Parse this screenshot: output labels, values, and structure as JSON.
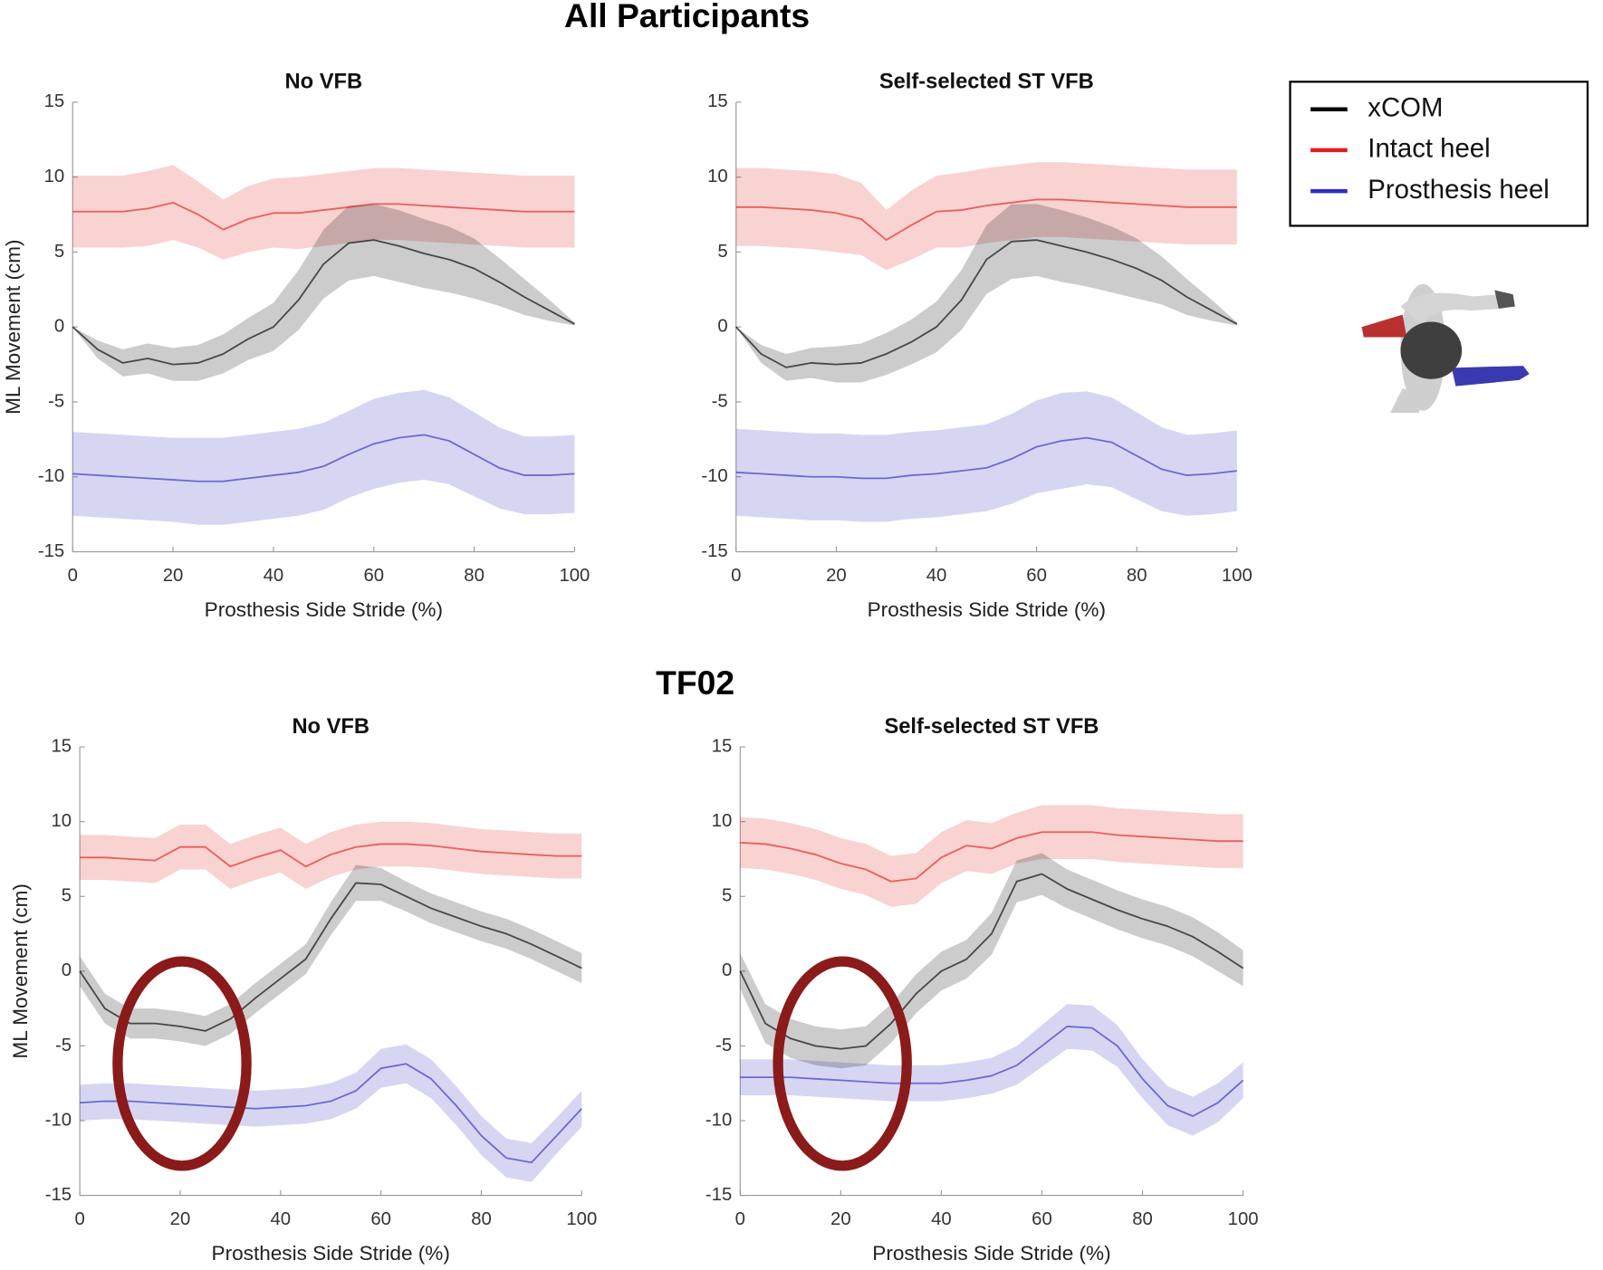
{
  "section_titles": [
    "All Participants",
    "TF02"
  ],
  "chart_data": [
    {
      "type": "line",
      "title": "No VFB",
      "xlabel": "Prosthesis Side Stride (%)",
      "ylabel": "ML Movement (cm)",
      "x": [
        0,
        5,
        10,
        15,
        20,
        25,
        30,
        35,
        40,
        45,
        50,
        55,
        60,
        65,
        70,
        75,
        80,
        85,
        90,
        95,
        100
      ],
      "xlim": [
        0,
        100
      ],
      "ylim": [
        -15,
        15
      ],
      "xticks": [
        0,
        20,
        40,
        60,
        80,
        100
      ],
      "yticks": [
        -15,
        -10,
        -5,
        0,
        5,
        10,
        15
      ],
      "series": [
        {
          "name": "xCOM",
          "color": "#000000",
          "values": [
            0,
            -1.5,
            -2.4,
            -2.1,
            -2.5,
            -2.4,
            -1.8,
            -0.8,
            0,
            1.8,
            4.2,
            5.6,
            5.8,
            5.4,
            4.9,
            4.5,
            3.9,
            3.0,
            2.0,
            1.1,
            0.2
          ],
          "sd": [
            0,
            0.6,
            0.9,
            1,
            1.1,
            1.2,
            1.3,
            1.4,
            1.6,
            2,
            2.3,
            2.5,
            2.4,
            2.4,
            2.3,
            2.2,
            2,
            1.6,
            1.2,
            0.7,
            0.1
          ]
        },
        {
          "name": "Intact heel",
          "color": "#e02020",
          "values": [
            7.7,
            7.7,
            7.7,
            7.9,
            8.3,
            7.5,
            6.5,
            7.2,
            7.6,
            7.6,
            7.8,
            8.0,
            8.2,
            8.2,
            8.1,
            8.0,
            7.9,
            7.8,
            7.7,
            7.7,
            7.7
          ],
          "sd": [
            2.4,
            2.4,
            2.4,
            2.5,
            2.5,
            2.2,
            2.0,
            2.2,
            2.3,
            2.4,
            2.4,
            2.4,
            2.4,
            2.4,
            2.4,
            2.4,
            2.4,
            2.4,
            2.4,
            2.4,
            2.4
          ]
        },
        {
          "name": "Prosthesis heel",
          "color": "#3030c0",
          "values": [
            -9.8,
            -9.9,
            -10,
            -10.1,
            -10.2,
            -10.3,
            -10.3,
            -10.1,
            -9.9,
            -9.7,
            -9.3,
            -8.5,
            -7.8,
            -7.4,
            -7.2,
            -7.6,
            -8.5,
            -9.4,
            -9.9,
            -9.9,
            -9.8
          ],
          "sd": [
            2.8,
            2.8,
            2.8,
            2.8,
            2.8,
            2.9,
            2.9,
            2.9,
            2.9,
            2.9,
            2.9,
            2.9,
            3,
            3,
            3,
            2.9,
            2.8,
            2.7,
            2.6,
            2.6,
            2.6
          ]
        }
      ]
    },
    {
      "type": "line",
      "title": "Self-selected ST VFB",
      "xlabel": "Prosthesis Side Stride (%)",
      "x": [
        0,
        5,
        10,
        15,
        20,
        25,
        30,
        35,
        40,
        45,
        50,
        55,
        60,
        65,
        70,
        75,
        80,
        85,
        90,
        95,
        100
      ],
      "xlim": [
        0,
        100
      ],
      "ylim": [
        -15,
        15
      ],
      "xticks": [
        0,
        20,
        40,
        60,
        80,
        100
      ],
      "yticks": [
        -15,
        -10,
        -5,
        0,
        5,
        10,
        15
      ],
      "series": [
        {
          "color": "#000000",
          "values": [
            0,
            -1.8,
            -2.7,
            -2.4,
            -2.5,
            -2.4,
            -1.8,
            -1,
            0,
            1.8,
            4.5,
            5.7,
            5.8,
            5.4,
            5,
            4.5,
            3.9,
            3.1,
            2,
            1.1,
            0.2
          ],
          "sd": [
            0,
            0.6,
            0.9,
            1,
            1.2,
            1.3,
            1.4,
            1.5,
            1.7,
            2,
            2.3,
            2.5,
            2.4,
            2.4,
            2.3,
            2.2,
            2,
            1.6,
            1.2,
            0.7,
            0.1
          ]
        },
        {
          "color": "#e02020",
          "values": [
            8,
            8,
            7.9,
            7.8,
            7.6,
            7.2,
            5.8,
            6.8,
            7.7,
            7.8,
            8.1,
            8.3,
            8.5,
            8.5,
            8.4,
            8.3,
            8.2,
            8.1,
            8,
            8,
            8
          ],
          "sd": [
            2.6,
            2.6,
            2.6,
            2.6,
            2.6,
            2.4,
            2.0,
            2.3,
            2.4,
            2.5,
            2.5,
            2.5,
            2.5,
            2.5,
            2.5,
            2.5,
            2.5,
            2.5,
            2.5,
            2.5,
            2.5
          ]
        },
        {
          "color": "#3030c0",
          "values": [
            -9.7,
            -9.8,
            -9.9,
            -10,
            -10,
            -10.1,
            -10.1,
            -9.9,
            -9.8,
            -9.6,
            -9.4,
            -8.8,
            -8,
            -7.6,
            -7.4,
            -7.7,
            -8.6,
            -9.5,
            -9.9,
            -9.8,
            -9.6
          ],
          "sd": [
            2.9,
            2.9,
            2.9,
            2.9,
            2.9,
            2.9,
            2.9,
            2.9,
            2.9,
            2.9,
            2.9,
            3,
            3.1,
            3.2,
            3.1,
            3,
            2.9,
            2.8,
            2.7,
            2.7,
            2.7
          ]
        }
      ]
    },
    {
      "type": "line",
      "title": "No VFB",
      "xlabel": "Prosthesis Side Stride (%)",
      "ylabel": "ML Movement (cm)",
      "x": [
        0,
        5,
        10,
        15,
        20,
        25,
        30,
        35,
        40,
        45,
        50,
        55,
        60,
        65,
        70,
        75,
        80,
        85,
        90,
        95,
        100
      ],
      "xlim": [
        0,
        100
      ],
      "ylim": [
        -15,
        15
      ],
      "xticks": [
        0,
        20,
        40,
        60,
        80,
        100
      ],
      "yticks": [
        -15,
        -10,
        -5,
        0,
        5,
        10,
        15
      ],
      "series": [
        {
          "color": "#000000",
          "values": [
            0,
            -2.5,
            -3.5,
            -3.5,
            -3.7,
            -4.0,
            -3.2,
            -1.8,
            -0.5,
            0.8,
            3.5,
            5.9,
            5.8,
            5.0,
            4.2,
            3.6,
            3.0,
            2.5,
            1.8,
            1.0,
            0.2
          ],
          "sd": [
            1,
            1,
            1,
            1,
            1,
            1,
            1,
            1,
            1,
            1,
            1.1,
            1.2,
            1.1,
            1,
            1,
            1,
            1,
            1,
            1,
            1,
            1
          ]
        },
        {
          "color": "#e02020",
          "values": [
            7.6,
            7.6,
            7.5,
            7.4,
            8.3,
            8.3,
            7.0,
            7.6,
            8.1,
            7.0,
            7.8,
            8.3,
            8.5,
            8.5,
            8.4,
            8.2,
            8.0,
            7.9,
            7.8,
            7.7,
            7.7
          ],
          "sd": [
            1.5,
            1.5,
            1.5,
            1.5,
            1.5,
            1.5,
            1.5,
            1.5,
            1.5,
            1.5,
            1.5,
            1.5,
            1.5,
            1.5,
            1.5,
            1.5,
            1.5,
            1.5,
            1.5,
            1.5,
            1.5
          ]
        },
        {
          "color": "#3030c0",
          "values": [
            -8.8,
            -8.7,
            -8.7,
            -8.8,
            -8.9,
            -9.0,
            -9.1,
            -9.2,
            -9.1,
            -9.0,
            -8.7,
            -8.0,
            -6.5,
            -6.2,
            -7.2,
            -9.0,
            -11,
            -12.5,
            -12.8,
            -11,
            -9.2
          ],
          "sd": [
            1.2,
            1.2,
            1.2,
            1.2,
            1.2,
            1.2,
            1.2,
            1.2,
            1.2,
            1.2,
            1.2,
            1.2,
            1.3,
            1.3,
            1.3,
            1.3,
            1.3,
            1.3,
            1.3,
            1.2,
            1.2
          ]
        }
      ]
    },
    {
      "type": "line",
      "title": "Self-selected ST VFB",
      "xlabel": "Prosthesis Side Stride (%)",
      "x": [
        0,
        5,
        10,
        15,
        20,
        25,
        30,
        35,
        40,
        45,
        50,
        55,
        60,
        65,
        70,
        75,
        80,
        85,
        90,
        95,
        100
      ],
      "xlim": [
        0,
        100
      ],
      "ylim": [
        -15,
        15
      ],
      "xticks": [
        0,
        20,
        40,
        60,
        80,
        100
      ],
      "yticks": [
        -15,
        -10,
        -5,
        0,
        5,
        10,
        15
      ],
      "series": [
        {
          "color": "#000000",
          "values": [
            0,
            -3.5,
            -4.5,
            -5,
            -5.2,
            -5,
            -3.5,
            -1.5,
            0,
            0.8,
            2.5,
            6.0,
            6.5,
            5.5,
            4.8,
            4.1,
            3.5,
            3.0,
            2.3,
            1.3,
            0.2
          ],
          "sd": [
            1.2,
            1.3,
            1.3,
            1.3,
            1.3,
            1.3,
            1.3,
            1.3,
            1.3,
            1.3,
            1.4,
            1.4,
            1.4,
            1.3,
            1.3,
            1.3,
            1.3,
            1.3,
            1.3,
            1.3,
            1.2
          ]
        },
        {
          "color": "#e02020",
          "values": [
            8.6,
            8.5,
            8.2,
            7.8,
            7.2,
            6.8,
            6,
            6.2,
            7.6,
            8.4,
            8.2,
            8.9,
            9.3,
            9.3,
            9.3,
            9.1,
            9,
            8.9,
            8.8,
            8.7,
            8.7
          ],
          "sd": [
            1.7,
            1.7,
            1.7,
            1.7,
            1.7,
            1.7,
            1.7,
            1.7,
            1.7,
            1.7,
            1.7,
            1.7,
            1.8,
            1.8,
            1.8,
            1.8,
            1.8,
            1.8,
            1.8,
            1.8,
            1.8
          ]
        },
        {
          "color": "#3030c0",
          "values": [
            -7.1,
            -7.1,
            -7.1,
            -7.2,
            -7.3,
            -7.4,
            -7.5,
            -7.5,
            -7.5,
            -7.3,
            -7,
            -6.3,
            -5,
            -3.7,
            -3.8,
            -5,
            -7.2,
            -9,
            -9.7,
            -8.8,
            -7.3
          ],
          "sd": [
            1.2,
            1.2,
            1.2,
            1.2,
            1.2,
            1.2,
            1.2,
            1.2,
            1.2,
            1.2,
            1.2,
            1.3,
            1.4,
            1.5,
            1.5,
            1.4,
            1.3,
            1.3,
            1.3,
            1.3,
            1.2
          ]
        }
      ]
    }
  ]
}
